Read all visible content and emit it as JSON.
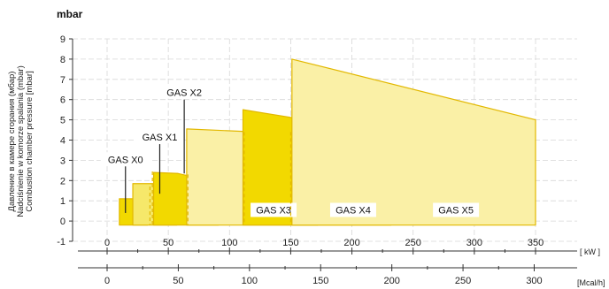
{
  "chart_data": {
    "type": "area",
    "title": "mbar",
    "ylabel_lines": [
      "Давление в камере сгорания (мбар)",
      "Nadciśnienie w komorze spalania (mbar)",
      "Combustion chamber pressure [mbar]"
    ],
    "ylim": [
      -1,
      9
    ],
    "yticks": [
      "-1",
      "0",
      "1",
      "2",
      "3",
      "4",
      "5",
      "6",
      "7",
      "8",
      "9"
    ],
    "x_kw": {
      "unit": "[ kW ]",
      "lim": [
        0,
        350
      ],
      "ticks": [
        "0",
        "50",
        "100",
        "150",
        "200",
        "250",
        "300",
        "350"
      ]
    },
    "x_mcal": {
      "unit": "[Mcal/h]",
      "lim": [
        0,
        301
      ],
      "ticks": [
        "0",
        "50",
        "100",
        "150",
        "200",
        "250",
        "300"
      ]
    },
    "grid": true,
    "series": [
      {
        "name": "GAS X0",
        "color": "#f2d900",
        "points": [
          [
            10,
            1.1
          ],
          [
            10,
            -0.2
          ],
          [
            33,
            -0.2
          ],
          [
            33,
            1.1
          ]
        ],
        "dashed_x": 35,
        "leader": [
          [
            15,
            2.7
          ],
          [
            15,
            0.4
          ]
        ]
      },
      {
        "name": "GAS X1",
        "color": "#f6e86a",
        "points": [
          [
            21,
            1.85
          ],
          [
            21,
            -0.2
          ],
          [
            57,
            -0.2
          ],
          [
            57,
            1.85
          ]
        ],
        "dashed_x": 37,
        "leader": [
          [
            43,
            3.8
          ],
          [
            43,
            1.35
          ]
        ]
      },
      {
        "name": "GAS X2",
        "color": "#f2d900",
        "points": [
          [
            38,
            2.4
          ],
          [
            38,
            -0.2
          ],
          [
            91,
            -0.2
          ],
          [
            91,
            1.1
          ],
          [
            80,
            2.05
          ],
          [
            58,
            2.35
          ]
        ],
        "dashed_x": 66,
        "leader": [
          [
            63,
            6.0
          ],
          [
            63,
            2.35
          ]
        ]
      },
      {
        "name": "GAS X3",
        "color": "#faf0a6",
        "points": [
          [
            65,
            4.55
          ],
          [
            65,
            -0.2
          ],
          [
            172,
            -0.2
          ],
          [
            172,
            2.5
          ],
          [
            145,
            4.5
          ],
          [
            122,
            4.4
          ]
        ],
        "dashed_x": 112,
        "label_at": [
          136,
          0.55
        ]
      },
      {
        "name": "GAS X4",
        "color": "#f2d900",
        "points": [
          [
            111,
            5.5
          ],
          [
            111,
            -0.2
          ],
          [
            232,
            -0.2
          ],
          [
            232,
            2.5
          ],
          [
            208,
            4.7
          ],
          [
            193,
            4.7
          ]
        ],
        "dashed_x": 150,
        "label_at": [
          201,
          0.55
        ]
      },
      {
        "name": "GAS X5",
        "color": "#faf0a6",
        "points": [
          [
            151,
            8.0
          ],
          [
            151,
            -0.2
          ],
          [
            350,
            -0.2
          ],
          [
            350,
            5.0
          ]
        ],
        "label_at": [
          285,
          0.55
        ]
      }
    ]
  }
}
